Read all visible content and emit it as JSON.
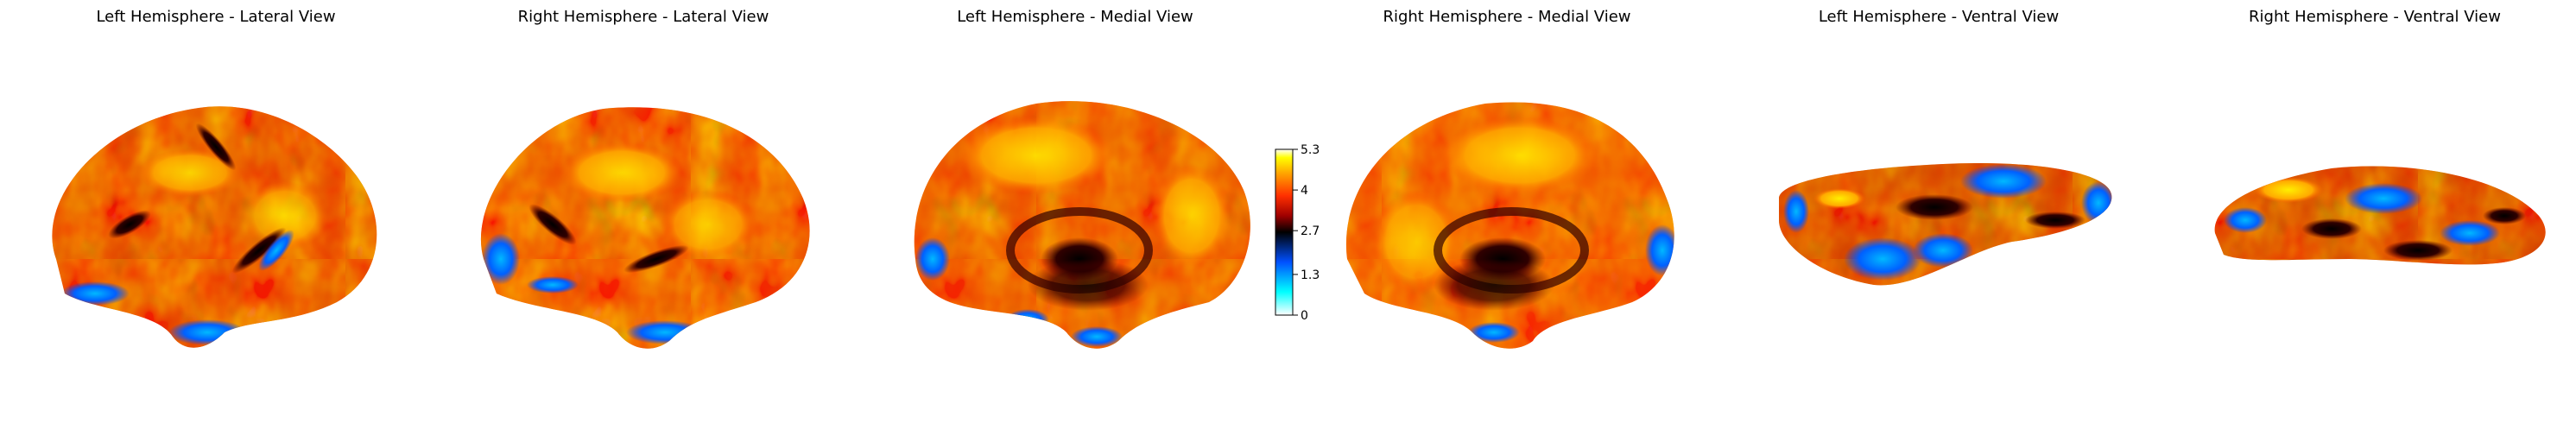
{
  "panels": [
    {
      "title": "Left Hemisphere - Lateral View"
    },
    {
      "title": "Right Hemisphere - Lateral View"
    },
    {
      "title": "Left Hemisphere - Medial View"
    },
    {
      "title": "Right Hemisphere - Medial View"
    },
    {
      "title": "Left Hemisphere - Ventral View"
    },
    {
      "title": "Right Hemisphere - Ventral View"
    }
  ],
  "colorbar": {
    "ticks": [
      "0",
      "1.3",
      "2.7",
      "4",
      "5.3"
    ],
    "min": 0,
    "max": 5.3,
    "colormap": "cold_hot",
    "colors": [
      "#ffffff",
      "#00ffff",
      "#0050ff",
      "#000000",
      "#a00000",
      "#ff3000",
      "#ffa000",
      "#ffff00",
      "#ffffff"
    ]
  }
}
